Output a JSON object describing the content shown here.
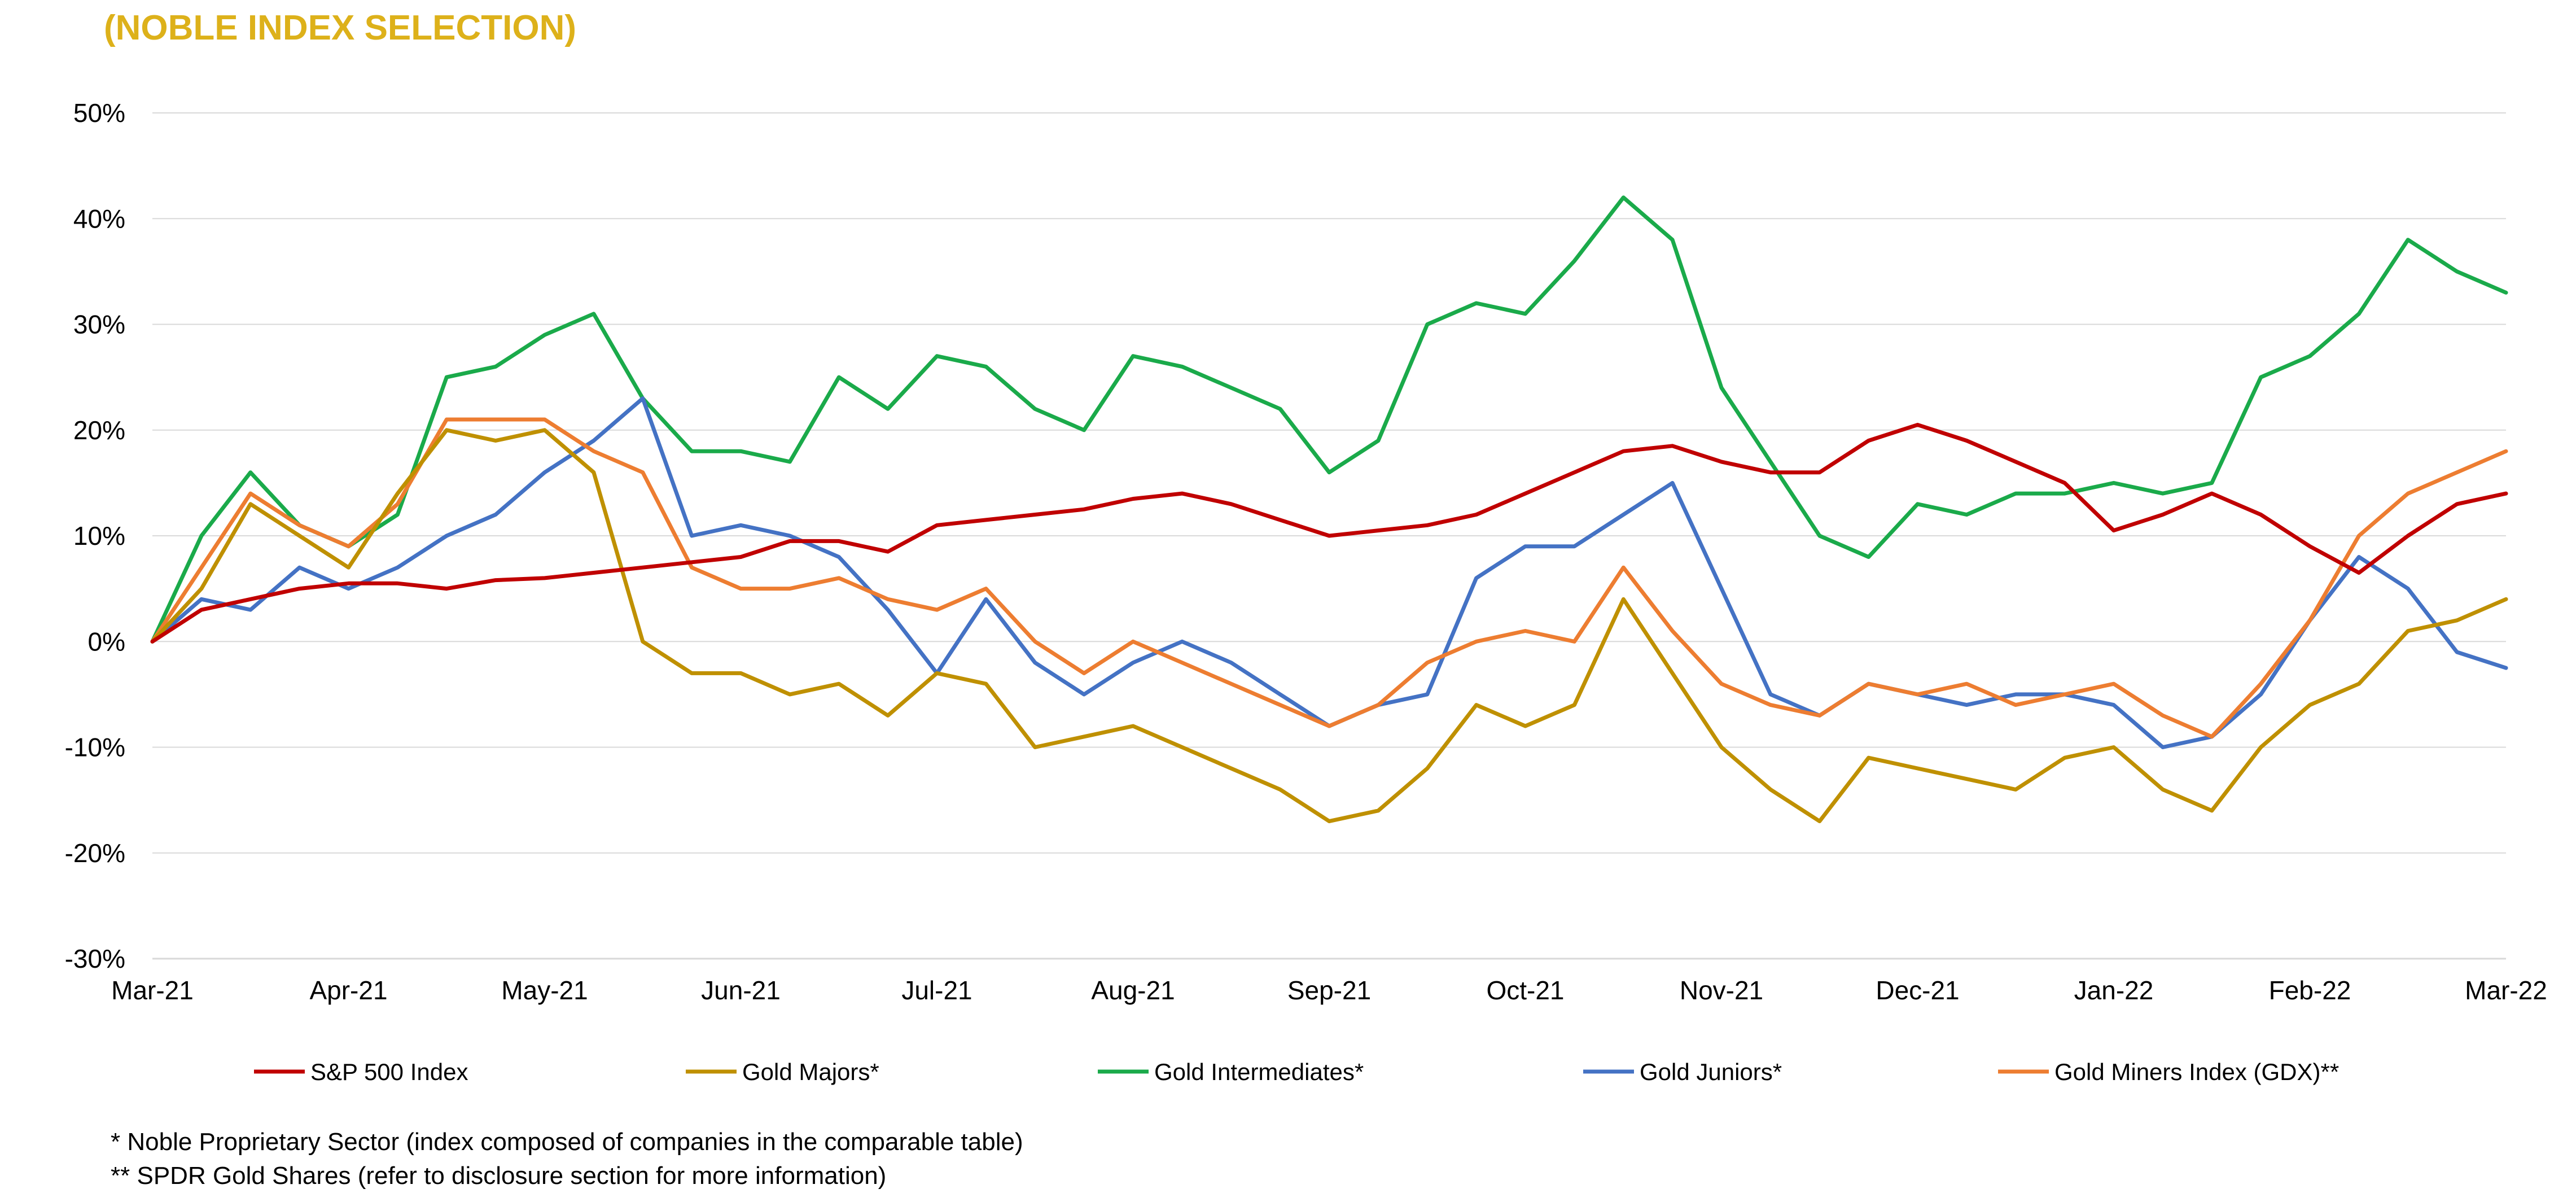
{
  "title": "(NOBLE INDEX SELECTION)",
  "colors": {
    "title": "#DDB11A",
    "sp500": "#C00000",
    "gold_majors": "#BF9000",
    "gold_intermediates": "#1AAA4A",
    "gold_juniors": "#4472C4",
    "gdx": "#ED7D31"
  },
  "footnotes": [
    "* Noble Proprietary Sector (index composed of companies in the comparable table)",
    "** SPDR Gold Shares (refer to disclosure section for more information)"
  ],
  "chart_data": {
    "type": "line",
    "xlabel": "",
    "ylabel": "",
    "ylim": [
      -30,
      50
    ],
    "yticks": [
      "50%",
      "40%",
      "30%",
      "20%",
      "10%",
      "0%",
      "-10%",
      "-20%",
      "-30%"
    ],
    "ytick_values": [
      50,
      40,
      30,
      20,
      10,
      0,
      -10,
      -20,
      -30
    ],
    "xticks": [
      "Mar-21",
      "Apr-21",
      "May-21",
      "Jun-21",
      "Jul-21",
      "Aug-21",
      "Sep-21",
      "Oct-21",
      "Nov-21",
      "Dec-21",
      "Jan-22",
      "Feb-22",
      "Mar-22"
    ],
    "xlim": [
      0,
      12
    ],
    "grid": "horizontal",
    "legend_position": "bottom",
    "series": [
      {
        "name": "S&P 500 Index",
        "color": "#C00000",
        "x": [
          0,
          0.25,
          0.5,
          0.75,
          1,
          1.25,
          1.5,
          1.75,
          2,
          2.25,
          2.5,
          2.75,
          3,
          3.25,
          3.5,
          3.75,
          4,
          4.25,
          4.5,
          4.75,
          5,
          5.25,
          5.5,
          5.75,
          6,
          6.25,
          6.5,
          6.75,
          7,
          7.25,
          7.5,
          7.75,
          8,
          8.25,
          8.5,
          8.75,
          9,
          9.25,
          9.5,
          9.75,
          10,
          10.25,
          10.5,
          10.75,
          11,
          11.25,
          11.5,
          11.75,
          12
        ],
        "values": [
          0,
          3,
          4,
          5,
          5.5,
          5.5,
          5,
          5.8,
          6,
          6.5,
          7,
          7.5,
          8,
          9.5,
          9.5,
          8.5,
          11,
          11.5,
          12,
          12.5,
          13.5,
          14,
          13,
          11.5,
          10,
          10.5,
          11,
          12,
          14,
          16,
          18,
          18.5,
          17,
          16,
          16,
          19,
          20.5,
          19,
          17,
          15,
          10.5,
          12,
          14,
          12,
          9,
          6.5,
          10,
          13,
          14
        ]
      },
      {
        "name": "Gold Majors*",
        "color": "#BF9000",
        "x": [
          0,
          0.25,
          0.5,
          0.75,
          1,
          1.25,
          1.5,
          1.75,
          2,
          2.25,
          2.5,
          2.75,
          3,
          3.25,
          3.5,
          3.75,
          4,
          4.25,
          4.5,
          4.75,
          5,
          5.25,
          5.5,
          5.75,
          6,
          6.25,
          6.5,
          6.75,
          7,
          7.25,
          7.5,
          7.75,
          8,
          8.25,
          8.5,
          8.75,
          9,
          9.25,
          9.5,
          9.75,
          10,
          10.25,
          10.5,
          10.75,
          11,
          11.25,
          11.5,
          11.75,
          12
        ],
        "values": [
          0,
          5,
          13,
          10,
          7,
          14,
          20,
          19,
          20,
          16,
          0,
          -3,
          -3,
          -5,
          -4,
          -7,
          -3,
          -4,
          -10,
          -9,
          -8,
          -10,
          -12,
          -14,
          -17,
          -16,
          -12,
          -6,
          -8,
          -6,
          4,
          -3,
          -10,
          -14,
          -17,
          -11,
          -12,
          -13,
          -14,
          -11,
          -10,
          -14,
          -16,
          -10,
          -6,
          -4,
          1,
          2,
          4
        ]
      },
      {
        "name": "Gold Intermediates*",
        "color": "#1AAA4A",
        "x": [
          0,
          0.25,
          0.5,
          0.75,
          1,
          1.25,
          1.5,
          1.75,
          2,
          2.25,
          2.5,
          2.75,
          3,
          3.25,
          3.5,
          3.75,
          4,
          4.25,
          4.5,
          4.75,
          5,
          5.25,
          5.5,
          5.75,
          6,
          6.25,
          6.5,
          6.75,
          7,
          7.25,
          7.5,
          7.75,
          8,
          8.25,
          8.5,
          8.75,
          9,
          9.25,
          9.5,
          9.75,
          10,
          10.25,
          10.5,
          10.75,
          11,
          11.25,
          11.5,
          11.75,
          12
        ],
        "values": [
          0,
          10,
          16,
          11,
          9,
          12,
          25,
          26,
          29,
          31,
          23,
          18,
          18,
          17,
          25,
          22,
          27,
          26,
          22,
          20,
          27,
          26,
          24,
          22,
          16,
          19,
          30,
          32,
          31,
          36,
          42,
          38,
          24,
          17,
          10,
          8,
          13,
          12,
          14,
          14,
          15,
          14,
          15,
          25,
          27,
          31,
          38,
          35,
          33
        ]
      },
      {
        "name": "Gold Juniors*",
        "color": "#4472C4",
        "x": [
          0,
          0.25,
          0.5,
          0.75,
          1,
          1.25,
          1.5,
          1.75,
          2,
          2.25,
          2.5,
          2.75,
          3,
          3.25,
          3.5,
          3.75,
          4,
          4.25,
          4.5,
          4.75,
          5,
          5.25,
          5.5,
          5.75,
          6,
          6.25,
          6.5,
          6.75,
          7,
          7.25,
          7.5,
          7.75,
          8,
          8.25,
          8.5,
          8.75,
          9,
          9.25,
          9.5,
          9.75,
          10,
          10.25,
          10.5,
          10.75,
          11,
          11.25,
          11.5,
          11.75,
          12
        ],
        "values": [
          0,
          4,
          3,
          7,
          5,
          7,
          10,
          12,
          16,
          19,
          23,
          10,
          11,
          10,
          8,
          3,
          -3,
          4,
          -2,
          -5,
          -2,
          0,
          -2,
          -5,
          -8,
          -6,
          -5,
          6,
          9,
          9,
          12,
          15,
          5,
          -5,
          -7,
          -4,
          -5,
          -6,
          -5,
          -5,
          -6,
          -10,
          -9,
          -5,
          2,
          8,
          5,
          -1,
          -2.5
        ]
      },
      {
        "name": "Gold Miners Index (GDX)**",
        "color": "#ED7D31",
        "x": [
          0,
          0.25,
          0.5,
          0.75,
          1,
          1.25,
          1.5,
          1.75,
          2,
          2.25,
          2.5,
          2.75,
          3,
          3.25,
          3.5,
          3.75,
          4,
          4.25,
          4.5,
          4.75,
          5,
          5.25,
          5.5,
          5.75,
          6,
          6.25,
          6.5,
          6.75,
          7,
          7.25,
          7.5,
          7.75,
          8,
          8.25,
          8.5,
          8.75,
          9,
          9.25,
          9.5,
          9.75,
          10,
          10.25,
          10.5,
          10.75,
          11,
          11.25,
          11.5,
          11.75,
          12
        ],
        "values": [
          0,
          7,
          14,
          11,
          9,
          13,
          21,
          21,
          21,
          18,
          16,
          7,
          5,
          5,
          6,
          4,
          3,
          5,
          0,
          -3,
          0,
          -2,
          -4,
          -6,
          -8,
          -6,
          -2,
          0,
          1,
          0,
          7,
          1,
          -4,
          -6,
          -7,
          -4,
          -5,
          -4,
          -6,
          -5,
          -4,
          -7,
          -9,
          -4,
          2,
          10,
          14,
          16,
          18
        ]
      }
    ]
  }
}
